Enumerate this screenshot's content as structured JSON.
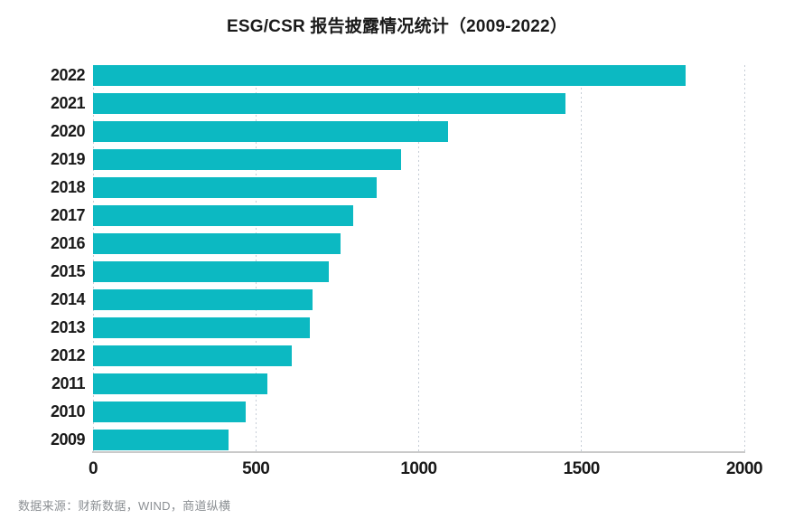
{
  "header": {
    "title": "ESG/CSR 报告披露情况统计（2009-2022）"
  },
  "footer": {
    "source_note": "数据来源：财新数据，WIND，商道纵横"
  },
  "chart_data": {
    "type": "bar",
    "orientation": "horizontal",
    "title": "ESG/CSR 报告披露情况统计（2009-2022）",
    "categories": [
      "2022",
      "2021",
      "2020",
      "2019",
      "2018",
      "2017",
      "2016",
      "2015",
      "2014",
      "2013",
      "2012",
      "2011",
      "2010",
      "2009"
    ],
    "values": [
      1820,
      1450,
      1090,
      945,
      870,
      800,
      760,
      725,
      675,
      665,
      610,
      535,
      470,
      415
    ],
    "xlabel": "",
    "ylabel": "",
    "xlim": [
      0,
      2000
    ],
    "xticks": [
      0,
      500,
      1000,
      1500,
      2000
    ],
    "grid": "vertical-dotted",
    "legend": "none",
    "source_note": "数据来源：财新数据，WIND，商道纵横"
  },
  "colors": {
    "bar": "#0cb9c2",
    "title_text": "#1a1a1a",
    "axis_label_text": "#1a1a1a",
    "gridline": "#c6cdd6",
    "axis_line": "#c9c9c9",
    "source_text": "#8b8f93",
    "background": "#ffffff"
  }
}
